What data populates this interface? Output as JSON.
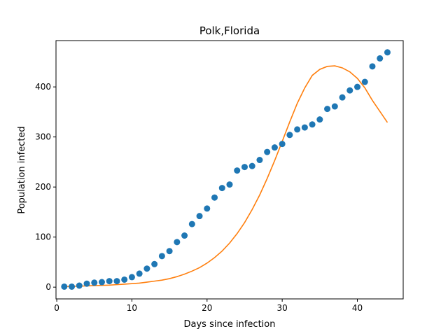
{
  "chart_data": {
    "type": "scatter",
    "title": "Polk,Florida",
    "xlabel": "Days since infection",
    "ylabel": "Population infected",
    "xlim": [
      -0.1,
      46.1
    ],
    "ylim": [
      -23.5,
      492.5
    ],
    "xticks": [
      0,
      10,
      20,
      30,
      40
    ],
    "yticks": [
      0,
      100,
      200,
      300,
      400
    ],
    "grid": false,
    "legend": "none",
    "series": [
      {
        "kind": "scatter",
        "color": "#1f77b4",
        "x": [
          1,
          2,
          3,
          4,
          5,
          6,
          7,
          8,
          9,
          10,
          11,
          12,
          13,
          14,
          15,
          16,
          17,
          18,
          19,
          20,
          21,
          22,
          23,
          24,
          25,
          26,
          27,
          28,
          29,
          30,
          31,
          32,
          33,
          34,
          35,
          36,
          37,
          38,
          39,
          40,
          41,
          42,
          43,
          44
        ],
        "y": [
          1,
          1,
          3,
          7,
          9,
          10,
          12,
          12,
          15,
          20,
          27,
          37,
          46,
          62,
          72,
          90,
          103,
          126,
          142,
          157,
          179,
          198,
          205,
          233,
          240,
          242,
          254,
          270,
          279,
          286,
          304,
          315,
          319,
          325,
          335,
          356,
          361,
          379,
          393,
          400,
          410,
          441,
          457,
          469
        ]
      },
      {
        "kind": "line",
        "color": "#ff7f0e",
        "x": [
          1,
          2,
          3,
          4,
          5,
          6,
          7,
          8,
          9,
          10,
          11,
          12,
          13,
          14,
          15,
          16,
          17,
          18,
          19,
          20,
          21,
          22,
          23,
          24,
          25,
          26,
          27,
          28,
          29,
          30,
          31,
          32,
          33,
          34,
          35,
          36,
          37,
          38,
          39,
          40,
          41,
          42,
          43,
          44
        ],
        "y": [
          1,
          1.5,
          2,
          2.5,
          3,
          3.5,
          4,
          5,
          6,
          7,
          8,
          10,
          12,
          14,
          17,
          21,
          26,
          32,
          39,
          48,
          59,
          72,
          88,
          107,
          129,
          155,
          184,
          217,
          253,
          291,
          330,
          367,
          398,
          423,
          435,
          441,
          442,
          438,
          430,
          417,
          398,
          373,
          351,
          329
        ]
      }
    ]
  }
}
